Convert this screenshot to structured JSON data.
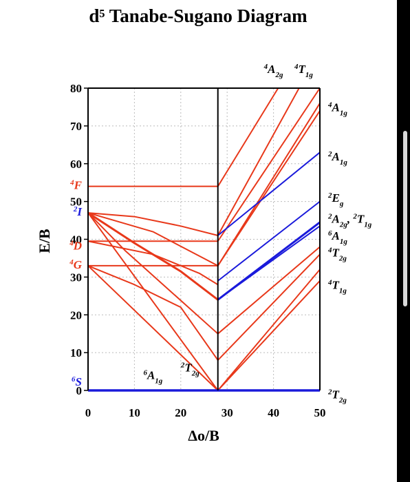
{
  "chart_data": {
    "type": "line",
    "title": "d⁵ Tanabe-Sugano Diagram",
    "xlabel": "Δo/B",
    "ylabel": "E/B",
    "xlim": [
      0,
      50
    ],
    "ylim": [
      0,
      80
    ],
    "x_ticks": [
      "0",
      "10",
      "20",
      "30",
      "40",
      "50"
    ],
    "y_ticks": [
      "0",
      "10",
      "20",
      "30",
      "40",
      "50",
      "60",
      "70",
      "80"
    ],
    "grid": "dotted",
    "crossover_x": 28,
    "colors": {
      "quartet": "#e8381a",
      "doublet_sextet": "#1a1adb",
      "frame": "#000000",
      "grid": "#bbbbbb"
    },
    "left_terms": [
      {
        "mult": "4",
        "term": "F",
        "y": 54,
        "color": "#e8381a"
      },
      {
        "mult": "2",
        "term": "I",
        "y": 47,
        "color": "#1a1adb"
      },
      {
        "mult": "4",
        "term": "D",
        "y": 38,
        "color": "#e8381a"
      },
      {
        "mult": "4",
        "term": "G",
        "y": 33,
        "color": "#e8381a"
      },
      {
        "mult": "6",
        "term": "S",
        "y": 2,
        "color": "#1a1adb"
      }
    ],
    "inner_labels": [
      {
        "mult": "6",
        "term": "A",
        "sub": "1g",
        "x": 14,
        "y": 3
      },
      {
        "mult": "2",
        "term": "T",
        "sub": "2g",
        "x": 22,
        "y": 5
      }
    ],
    "top_labels": [
      {
        "mult": "4",
        "term": "A",
        "sub": "2g",
        "x": 40,
        "y": 84
      },
      {
        "mult": "4",
        "term": "T",
        "sub": "1g",
        "x": 46.5,
        "y": 84
      }
    ],
    "right_labels": [
      {
        "text": [
          {
            "mult": "4",
            "term": "A",
            "sub": "1g"
          }
        ],
        "y": 75
      },
      {
        "text": [
          {
            "mult": "2",
            "term": "A",
            "sub": "1g"
          }
        ],
        "y": 62
      },
      {
        "text": [
          {
            "mult": "2",
            "term": "E",
            "sub": "g"
          }
        ],
        "y": 51
      },
      {
        "text": [
          {
            "mult": "2",
            "term": "A",
            "sub": "2g"
          },
          {
            "mult": "2",
            "term": "T",
            "sub": "1g"
          }
        ],
        "y": 45.5
      },
      {
        "text": [
          {
            "mult": "6",
            "term": "A",
            "sub": "1g"
          }
        ],
        "y": 41
      },
      {
        "text": [
          {
            "mult": "4",
            "term": "T",
            "sub": "2g"
          }
        ],
        "y": 36.5
      },
      {
        "text": [
          {
            "mult": "4",
            "term": "T",
            "sub": "1g"
          }
        ],
        "y": 28
      },
      {
        "text": [
          {
            "mult": "2",
            "term": "T",
            "sub": "2g"
          }
        ],
        "y": -1
      }
    ],
    "series": [
      {
        "color": "red",
        "width": 2,
        "points": [
          [
            0,
            54
          ],
          [
            28,
            54
          ],
          [
            50,
            98
          ]
        ]
      },
      {
        "color": "red",
        "width": 2,
        "points": [
          [
            0,
            47
          ],
          [
            10,
            46
          ],
          [
            20,
            43.5
          ],
          [
            28,
            41
          ],
          [
            50,
            90
          ]
        ]
      },
      {
        "color": "red",
        "width": 2,
        "points": [
          [
            0,
            47
          ],
          [
            14,
            42
          ],
          [
            28,
            33
          ],
          [
            50,
            76
          ]
        ]
      },
      {
        "color": "red",
        "width": 3,
        "points": [
          [
            0,
            47
          ],
          [
            10,
            39
          ],
          [
            20,
            31.5
          ],
          [
            28,
            24
          ]
        ]
      },
      {
        "color": "red",
        "width": 2,
        "points": [
          [
            0,
            47
          ],
          [
            8,
            37
          ],
          [
            18,
            26
          ],
          [
            28,
            15
          ],
          [
            50,
            38
          ]
        ]
      },
      {
        "color": "red",
        "width": 2,
        "points": [
          [
            0,
            47
          ],
          [
            28,
            0
          ],
          [
            50,
            32
          ]
        ]
      },
      {
        "color": "red",
        "width": 2,
        "points": [
          [
            0,
            39.5
          ],
          [
            28,
            39.5
          ],
          [
            50,
            80
          ]
        ]
      },
      {
        "color": "red",
        "width": 2,
        "points": [
          [
            0,
            39.5
          ],
          [
            14,
            36
          ],
          [
            24,
            31
          ],
          [
            28,
            28
          ]
        ]
      },
      {
        "color": "red",
        "width": 2,
        "points": [
          [
            0,
            33
          ],
          [
            28,
            33
          ],
          [
            50,
            74
          ]
        ]
      },
      {
        "color": "red",
        "width": 2,
        "points": [
          [
            0,
            33
          ],
          [
            10,
            28
          ],
          [
            20,
            22
          ],
          [
            28,
            8
          ],
          [
            50,
            36
          ]
        ]
      },
      {
        "color": "red",
        "width": 2,
        "points": [
          [
            0,
            33
          ],
          [
            28,
            0
          ],
          [
            50,
            29
          ]
        ]
      },
      {
        "color": "blue",
        "width": 2,
        "points": [
          [
            28,
            41
          ],
          [
            50,
            63
          ]
        ]
      },
      {
        "color": "blue",
        "width": 2,
        "points": [
          [
            28,
            29
          ],
          [
            50,
            50
          ]
        ]
      },
      {
        "color": "blue",
        "width": 3,
        "points": [
          [
            28,
            24
          ],
          [
            50,
            44.5
          ]
        ]
      },
      {
        "color": "blue",
        "width": 2,
        "points": [
          [
            28,
            24
          ],
          [
            50,
            43.5
          ]
        ]
      },
      {
        "color": "blue",
        "width": 3.5,
        "points": [
          [
            0,
            0
          ],
          [
            50,
            0
          ]
        ]
      }
    ]
  }
}
